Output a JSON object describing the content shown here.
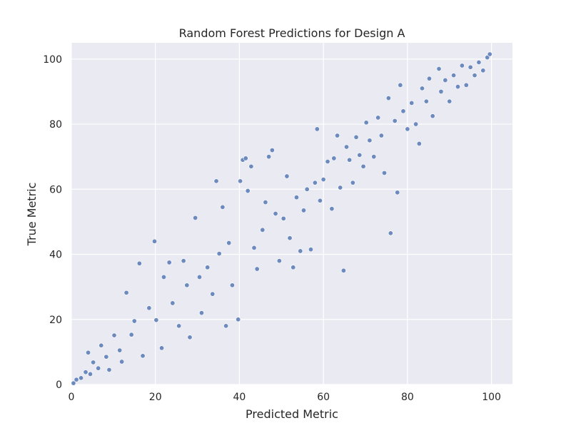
{
  "chart_data": {
    "type": "scatter",
    "title": "Random Forest Predictions for Design A",
    "xlabel": "Predicted Metric",
    "ylabel": "True Metric",
    "xlim": [
      0,
      105
    ],
    "ylim": [
      0,
      105
    ],
    "xticks": [
      0,
      20,
      40,
      60,
      80,
      100
    ],
    "yticks": [
      0,
      20,
      40,
      60,
      80,
      100
    ],
    "grid": true,
    "background_color": "#eaeaf2",
    "grid_color": "#ffffff",
    "marker_color": "#4c72b0",
    "marker_edge_color": "#ffffff",
    "series": [
      {
        "points": [
          [
            0.5,
            0.4
          ],
          [
            1.2,
            1.5
          ],
          [
            2.3,
            2.0
          ],
          [
            3.4,
            3.8
          ],
          [
            4.5,
            3.2
          ],
          [
            4.0,
            9.8
          ],
          [
            5.2,
            6.8
          ],
          [
            6.4,
            5.0
          ],
          [
            7.1,
            12.0
          ],
          [
            8.3,
            8.5
          ],
          [
            9.0,
            4.5
          ],
          [
            10.2,
            15.1
          ],
          [
            11.5,
            10.5
          ],
          [
            12.0,
            7.0
          ],
          [
            13.1,
            28.2
          ],
          [
            14.3,
            15.3
          ],
          [
            15.0,
            19.5
          ],
          [
            16.2,
            37.2
          ],
          [
            17.0,
            8.8
          ],
          [
            18.5,
            23.5
          ],
          [
            19.8,
            44.0
          ],
          [
            20.2,
            19.8
          ],
          [
            21.5,
            11.2
          ],
          [
            22.0,
            33.0
          ],
          [
            23.3,
            37.5
          ],
          [
            24.1,
            25.0
          ],
          [
            25.6,
            18.0
          ],
          [
            26.7,
            38.0
          ],
          [
            27.5,
            30.5
          ],
          [
            28.2,
            14.5
          ],
          [
            29.5,
            51.2
          ],
          [
            30.5,
            33.0
          ],
          [
            31.0,
            22.0
          ],
          [
            32.4,
            36.0
          ],
          [
            33.6,
            27.8
          ],
          [
            34.5,
            62.5
          ],
          [
            35.2,
            40.2
          ],
          [
            36.0,
            54.5
          ],
          [
            36.8,
            18.0
          ],
          [
            37.5,
            43.5
          ],
          [
            38.3,
            30.5
          ],
          [
            39.7,
            20.0
          ],
          [
            40.2,
            62.5
          ],
          [
            40.8,
            69.0
          ],
          [
            41.5,
            69.5
          ],
          [
            42.0,
            59.5
          ],
          [
            42.8,
            67.0
          ],
          [
            43.5,
            42.0
          ],
          [
            44.2,
            35.5
          ],
          [
            45.5,
            47.5
          ],
          [
            46.2,
            56.0
          ],
          [
            47.0,
            70.0
          ],
          [
            47.8,
            72.0
          ],
          [
            48.6,
            52.5
          ],
          [
            49.5,
            38.0
          ],
          [
            50.5,
            51.0
          ],
          [
            51.3,
            64.0
          ],
          [
            52.0,
            45.0
          ],
          [
            52.8,
            36.0
          ],
          [
            53.6,
            57.5
          ],
          [
            54.5,
            41.0
          ],
          [
            55.3,
            53.5
          ],
          [
            56.1,
            60.0
          ],
          [
            57.0,
            41.5
          ],
          [
            58.0,
            62.0
          ],
          [
            58.5,
            78.5
          ],
          [
            59.2,
            56.5
          ],
          [
            60.0,
            63.0
          ],
          [
            61.0,
            68.5
          ],
          [
            62.0,
            54.0
          ],
          [
            62.5,
            69.5
          ],
          [
            63.3,
            76.5
          ],
          [
            64.0,
            60.5
          ],
          [
            64.8,
            35.0
          ],
          [
            65.5,
            73.0
          ],
          [
            66.2,
            69.0
          ],
          [
            67.0,
            62.0
          ],
          [
            67.8,
            76.0
          ],
          [
            68.6,
            70.5
          ],
          [
            69.5,
            67.0
          ],
          [
            70.2,
            80.5
          ],
          [
            71.0,
            75.0
          ],
          [
            72.0,
            70.0
          ],
          [
            73.0,
            82.0
          ],
          [
            73.8,
            76.5
          ],
          [
            74.5,
            65.0
          ],
          [
            75.5,
            88.0
          ],
          [
            76.0,
            46.5
          ],
          [
            77.0,
            81.0
          ],
          [
            77.6,
            59.0
          ],
          [
            78.3,
            92.0
          ],
          [
            79.0,
            84.0
          ],
          [
            80.0,
            78.5
          ],
          [
            81.0,
            86.5
          ],
          [
            82.0,
            80.0
          ],
          [
            82.8,
            74.0
          ],
          [
            83.5,
            91.0
          ],
          [
            84.5,
            87.0
          ],
          [
            85.2,
            94.0
          ],
          [
            86.0,
            82.5
          ],
          [
            87.5,
            97.0
          ],
          [
            88.0,
            90.0
          ],
          [
            89.0,
            93.5
          ],
          [
            90.0,
            87.0
          ],
          [
            91.0,
            95.0
          ],
          [
            92.0,
            91.5
          ],
          [
            93.0,
            98.0
          ],
          [
            94.0,
            92.0
          ],
          [
            95.0,
            97.5
          ],
          [
            96.0,
            95.0
          ],
          [
            97.0,
            99.0
          ],
          [
            98.0,
            96.5
          ],
          [
            99.0,
            100.5
          ],
          [
            99.6,
            101.5
          ]
        ]
      }
    ]
  }
}
